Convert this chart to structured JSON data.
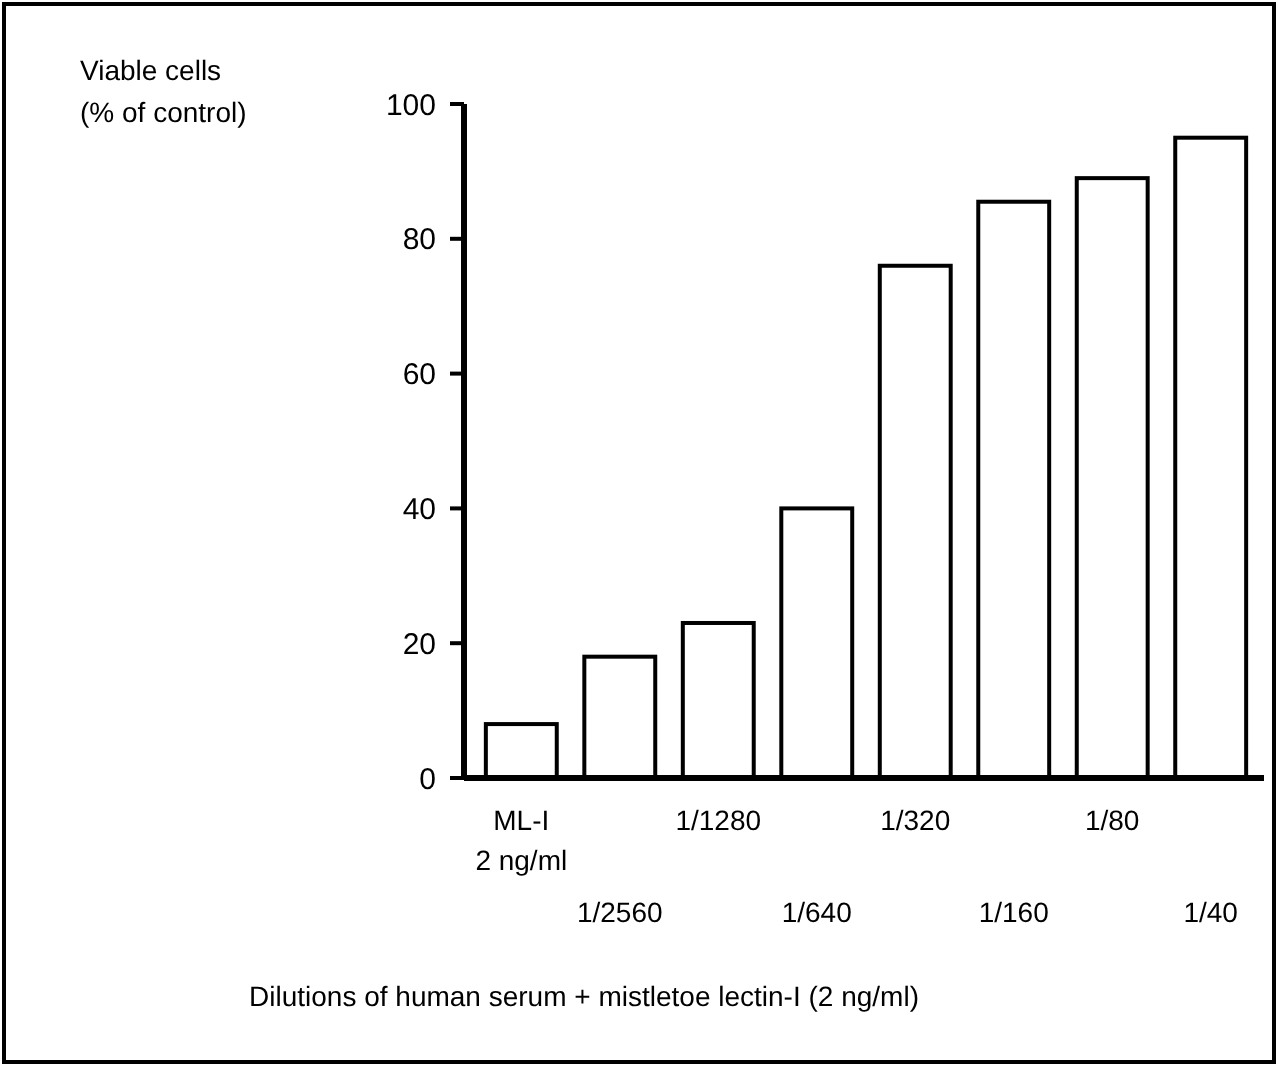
{
  "chart_data": {
    "type": "bar",
    "ylabel": "Viable cells\n(% of control)",
    "xlabel": "Dilutions of human serum + mistletoe lectin-I (2 ng/ml)",
    "categories": [
      "ML-I\n2 ng/ml",
      "1/2560",
      "1/1280",
      "1/640",
      "1/320",
      "1/160",
      "1/80",
      "1/40"
    ],
    "values": [
      8,
      18,
      23,
      40,
      76,
      85.5,
      89,
      95
    ],
    "color": "#ffffff",
    "ylim": [
      0,
      100
    ],
    "yticks": [
      0,
      20,
      40,
      60,
      80,
      100
    ],
    "grid": false
  }
}
